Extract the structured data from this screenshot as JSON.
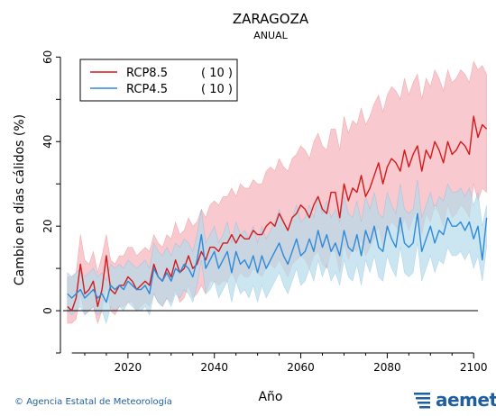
{
  "chart_data": {
    "type": "line",
    "title": "ZARAGOZA",
    "subtitle": "ANUAL",
    "xlabel": "Año",
    "ylabel": "Cambio en días cálidos (%)",
    "xlim": [
      2005,
      2101
    ],
    "ylim": [
      -10,
      62
    ],
    "x_ticks": [
      2020,
      2040,
      2060,
      2080,
      2100
    ],
    "y_ticks": [
      0,
      20,
      40,
      60
    ],
    "x_start": 2006,
    "series": [
      {
        "name": "RCP8.5",
        "count": "( 10 )",
        "color": "#d11a1a",
        "band_color": "#f5b8c0",
        "values": [
          1,
          0,
          3,
          11,
          4,
          5,
          7,
          1,
          5,
          13,
          5,
          4,
          6,
          6,
          8,
          7,
          5,
          6,
          7,
          6,
          11,
          8,
          7,
          10,
          8,
          12,
          9,
          10,
          13,
          10,
          11,
          14,
          12,
          15,
          15,
          14,
          16,
          16,
          18,
          16,
          18,
          17,
          17,
          19,
          18,
          18,
          20,
          21,
          20,
          23,
          21,
          19,
          22,
          23,
          25,
          24,
          22,
          25,
          27,
          24,
          23,
          28,
          28,
          22,
          30,
          26,
          29,
          28,
          32,
          27,
          29,
          32,
          35,
          30,
          34,
          36,
          35,
          33,
          38,
          34,
          37,
          39,
          33,
          38,
          36,
          40,
          38,
          35,
          40,
          37,
          38,
          40,
          39,
          37,
          46,
          41,
          44,
          43
        ],
        "upper": [
          8,
          8,
          9,
          18,
          12,
          11,
          14,
          9,
          13,
          18,
          12,
          11,
          13,
          13,
          15,
          15,
          13,
          14,
          15,
          14,
          18,
          16,
          15,
          18,
          17,
          21,
          18,
          19,
          22,
          20,
          21,
          24,
          22,
          25,
          26,
          25,
          27,
          27,
          29,
          27,
          30,
          29,
          29,
          31,
          30,
          30,
          33,
          34,
          33,
          36,
          34,
          33,
          36,
          37,
          39,
          38,
          36,
          40,
          42,
          39,
          38,
          43,
          43,
          38,
          46,
          42,
          45,
          44,
          48,
          44,
          46,
          49,
          51,
          47,
          51,
          53,
          52,
          50,
          55,
          51,
          54,
          56,
          50,
          55,
          53,
          57,
          55,
          52,
          57,
          54,
          55,
          57,
          56,
          54,
          59,
          57,
          58,
          56
        ],
        "lower": [
          -3,
          -3,
          -2,
          4,
          -1,
          0,
          1,
          -3,
          0,
          6,
          0,
          -1,
          1,
          1,
          2,
          2,
          0,
          1,
          2,
          1,
          4,
          2,
          1,
          3,
          2,
          5,
          2,
          3,
          6,
          3,
          4,
          6,
          4,
          7,
          7,
          6,
          7,
          7,
          9,
          7,
          9,
          8,
          8,
          10,
          9,
          8,
          10,
          11,
          10,
          12,
          10,
          8,
          11,
          12,
          13,
          12,
          10,
          13,
          14,
          11,
          10,
          14,
          14,
          9,
          16,
          12,
          15,
          14,
          17,
          13,
          15,
          17,
          20,
          15,
          19,
          21,
          20,
          18,
          22,
          19,
          22,
          24,
          18,
          23,
          21,
          25,
          23,
          20,
          25,
          22,
          23,
          25,
          24,
          22,
          30,
          26,
          29,
          28
        ]
      },
      {
        "name": "RCP4.5",
        "count": "( 10 )",
        "color": "#2e8ad8",
        "band_color": "#b5dcea",
        "values": [
          4,
          3,
          4,
          5,
          3,
          4,
          5,
          3,
          4,
          2,
          6,
          5,
          6,
          5,
          7,
          6,
          5,
          5,
          6,
          4,
          10,
          8,
          7,
          9,
          7,
          10,
          9,
          11,
          10,
          8,
          12,
          18,
          10,
          12,
          14,
          10,
          12,
          14,
          9,
          14,
          11,
          12,
          10,
          13,
          9,
          13,
          10,
          12,
          14,
          16,
          13,
          11,
          14,
          17,
          13,
          14,
          17,
          14,
          19,
          15,
          18,
          14,
          16,
          13,
          19,
          15,
          14,
          18,
          13,
          19,
          16,
          20,
          15,
          14,
          20,
          17,
          15,
          22,
          16,
          15,
          16,
          23,
          14,
          17,
          20,
          16,
          19,
          18,
          22,
          20,
          20,
          21,
          19,
          21,
          17,
          20,
          12,
          22
        ],
        "upper": [
          9,
          8,
          9,
          10,
          8,
          9,
          10,
          8,
          9,
          7,
          11,
          10,
          11,
          10,
          12,
          11,
          10,
          11,
          12,
          10,
          16,
          14,
          13,
          15,
          13,
          16,
          15,
          17,
          16,
          14,
          18,
          24,
          16,
          18,
          20,
          16,
          18,
          21,
          16,
          21,
          18,
          19,
          17,
          20,
          16,
          20,
          17,
          19,
          21,
          24,
          21,
          19,
          22,
          25,
          21,
          22,
          25,
          22,
          27,
          23,
          26,
          22,
          24,
          21,
          27,
          23,
          22,
          26,
          21,
          27,
          24,
          28,
          23,
          22,
          28,
          25,
          23,
          30,
          24,
          23,
          24,
          31,
          22,
          25,
          28,
          24,
          27,
          26,
          30,
          28,
          28,
          29,
          27,
          29,
          25,
          28,
          20,
          25
        ],
        "lower": [
          0,
          -1,
          0,
          1,
          -1,
          0,
          1,
          -1,
          0,
          -3,
          1,
          0,
          1,
          0,
          2,
          1,
          0,
          0,
          1,
          -1,
          4,
          2,
          1,
          3,
          1,
          4,
          3,
          5,
          4,
          2,
          6,
          12,
          4,
          5,
          7,
          3,
          5,
          7,
          2,
          7,
          4,
          5,
          3,
          6,
          2,
          6,
          3,
          5,
          7,
          9,
          6,
          4,
          7,
          10,
          6,
          7,
          10,
          7,
          12,
          8,
          11,
          7,
          9,
          6,
          12,
          8,
          7,
          11,
          6,
          12,
          9,
          13,
          8,
          7,
          13,
          10,
          8,
          15,
          9,
          8,
          9,
          16,
          7,
          10,
          13,
          9,
          12,
          11,
          15,
          13,
          13,
          14,
          12,
          14,
          10,
          13,
          7,
          15
        ]
      }
    ],
    "zero_line": true,
    "grid": false,
    "legend_position": "top-left"
  },
  "footer": {
    "credit": "Agencia Estatal de Meteorología",
    "copyright_symbol": "©",
    "logo_text": "aemet"
  }
}
